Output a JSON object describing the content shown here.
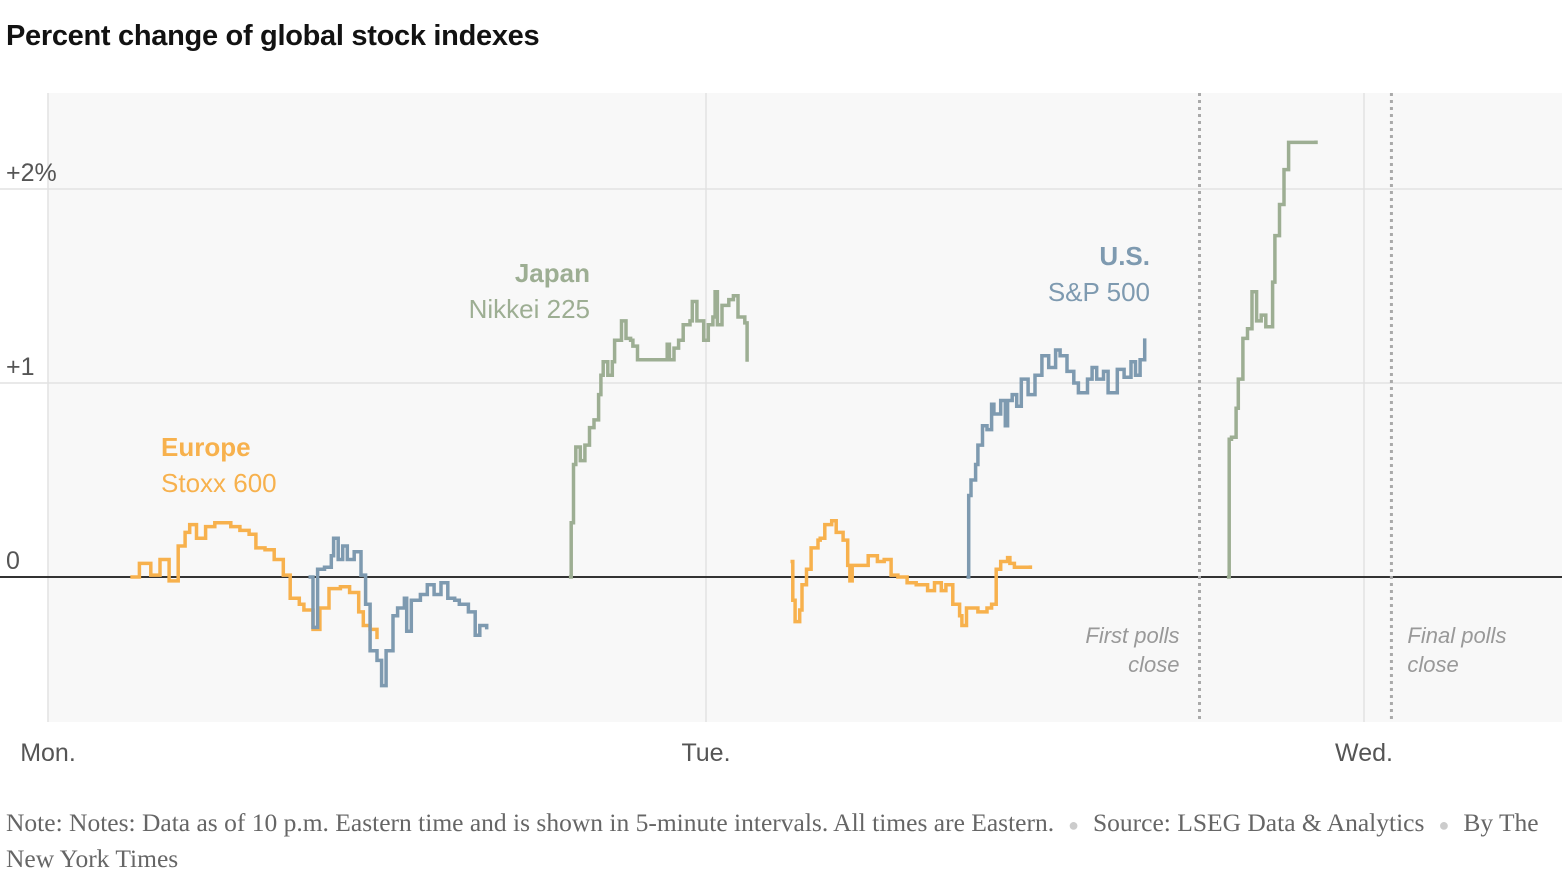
{
  "title": "Percent change of global stock indexes",
  "chart_data": {
    "type": "line",
    "title": "Percent change of global stock indexes",
    "step": true,
    "ylim": [
      -0.75,
      2.5
    ],
    "xlim": [
      "Mon 00:00",
      "Wed 07:00"
    ],
    "y_ticks": [
      {
        "value": 2,
        "label": "+2%"
      },
      {
        "value": 1,
        "label": "+1"
      },
      {
        "value": 0,
        "label": "0"
      }
    ],
    "x_ticks": [
      {
        "value": "Mon 00:00",
        "label": "Mon."
      },
      {
        "value": "Tue 00:00",
        "label": "Tue."
      },
      {
        "value": "Wed 00:00",
        "label": "Wed."
      }
    ],
    "grid": true,
    "series": [
      {
        "name": "Europe",
        "index": "Stoxx 600",
        "color": "#F7B14D",
        "segments": [
          [
            [
              "Mon 03:00",
              0
            ],
            [
              "Mon 03:20",
              0.07
            ],
            [
              "Mon 03:45",
              0.01
            ],
            [
              "Mon 04:05",
              0.09
            ],
            [
              "Mon 04:25",
              -0.02
            ],
            [
              "Mon 04:45",
              0.16
            ],
            [
              "Mon 05:00",
              0.23
            ],
            [
              "Mon 05:10",
              0.27
            ],
            [
              "Mon 05:25",
              0.2
            ],
            [
              "Mon 05:45",
              0.26
            ],
            [
              "Mon 06:05",
              0.28
            ],
            [
              "Mon 06:40",
              0.26
            ],
            [
              "Mon 07:00",
              0.24
            ],
            [
              "Mon 07:20",
              0.22
            ],
            [
              "Mon 07:35",
              0.15
            ],
            [
              "Mon 07:55",
              0.14
            ],
            [
              "Mon 08:15",
              0.09
            ],
            [
              "Mon 08:35",
              0.01
            ],
            [
              "Mon 08:50",
              -0.11
            ],
            [
              "Mon 09:10",
              -0.14
            ],
            [
              "Mon 09:20",
              -0.17
            ],
            [
              "Mon 09:40",
              -0.27
            ],
            [
              "Mon 09:55",
              -0.16
            ],
            [
              "Mon 10:15",
              -0.06
            ],
            [
              "Mon 10:40",
              -0.05
            ],
            [
              "Mon 11:00",
              -0.08
            ],
            [
              "Mon 11:20",
              -0.18
            ],
            [
              "Mon 11:30",
              -0.25
            ],
            [
              "Mon 11:45",
              -0.27
            ],
            [
              "Mon 12:00",
              -0.32
            ]
          ],
          [
            [
              "Tue 03:05",
              0.08
            ],
            [
              "Tue 03:10",
              -0.12
            ],
            [
              "Tue 03:15",
              -0.23
            ],
            [
              "Tue 03:25",
              -0.17
            ],
            [
              "Tue 03:30",
              -0.04
            ],
            [
              "Tue 03:40",
              0.04
            ],
            [
              "Tue 03:50",
              0.15
            ],
            [
              "Tue 04:05",
              0.19
            ],
            [
              "Tue 04:10",
              0.2
            ],
            [
              "Tue 04:20",
              0.27
            ],
            [
              "Tue 04:35",
              0.29
            ],
            [
              "Tue 04:45",
              0.23
            ],
            [
              "Tue 05:00",
              0.19
            ],
            [
              "Tue 05:10",
              0.06
            ],
            [
              "Tue 05:15",
              -0.02
            ],
            [
              "Tue 05:20",
              0.06
            ],
            [
              "Tue 05:40",
              0.06
            ],
            [
              "Tue 05:55",
              0.11
            ],
            [
              "Tue 06:15",
              0.08
            ],
            [
              "Tue 06:30",
              0.09
            ],
            [
              "Tue 06:45",
              0.01
            ],
            [
              "Tue 07:00",
              0
            ],
            [
              "Tue 07:20",
              -0.03
            ],
            [
              "Tue 07:40",
              -0.04
            ],
            [
              "Tue 08:05",
              -0.07
            ],
            [
              "Tue 08:20",
              -0.03
            ],
            [
              "Tue 08:35",
              -0.07
            ],
            [
              "Tue 08:45",
              -0.04
            ],
            [
              "Tue 09:00",
              -0.14
            ],
            [
              "Tue 09:15",
              -0.2
            ],
            [
              "Tue 09:20",
              -0.25
            ],
            [
              "Tue 09:30",
              -0.16
            ],
            [
              "Tue 09:55",
              -0.18
            ],
            [
              "Tue 10:15",
              -0.16
            ],
            [
              "Tue 10:25",
              -0.14
            ],
            [
              "Tue 10:35",
              0.04
            ],
            [
              "Tue 10:45",
              0.08
            ],
            [
              "Tue 11:00",
              0.1
            ],
            [
              "Tue 11:05",
              0.07
            ],
            [
              "Tue 11:15",
              0.05
            ],
            [
              "Tue 11:50",
              0.06
            ]
          ]
        ]
      },
      {
        "name": "Japan",
        "index": "Nikkei 225",
        "color": "#9DAE93",
        "segments": [
          [
            [
              "Mon 19:00",
              0
            ],
            [
              "Mon 19:05",
              0.28
            ],
            [
              "Mon 19:10",
              0.58
            ],
            [
              "Mon 19:15",
              0.67
            ],
            [
              "Mon 19:25",
              0.6
            ],
            [
              "Mon 19:35",
              0.68
            ],
            [
              "Mon 19:45",
              0.77
            ],
            [
              "Mon 19:55",
              0.81
            ],
            [
              "Mon 20:05",
              0.94
            ],
            [
              "Mon 20:10",
              1.04
            ],
            [
              "Mon 20:15",
              1.11
            ],
            [
              "Mon 20:25",
              1.04
            ],
            [
              "Mon 20:35",
              1.11
            ],
            [
              "Mon 20:40",
              1.22
            ],
            [
              "Mon 20:55",
              1.32
            ],
            [
              "Mon 21:05",
              1.23
            ],
            [
              "Mon 21:15",
              1.22
            ],
            [
              "Mon 21:20",
              1.19
            ],
            [
              "Mon 21:30",
              1.12
            ],
            [
              "Mon 22:30",
              1.12
            ],
            [
              "Mon 22:35",
              1.2
            ],
            [
              "Mon 22:40",
              1.12
            ],
            [
              "Mon 22:50",
              1.18
            ],
            [
              "Mon 23:00",
              1.22
            ],
            [
              "Mon 23:10",
              1.3
            ],
            [
              "Mon 23:25",
              1.32
            ],
            [
              "Mon 23:30",
              1.42
            ],
            [
              "Mon 23:40",
              1.32
            ],
            [
              "Mon 23:55",
              1.22
            ],
            [
              "Tue 00:05",
              1.3
            ],
            [
              "Tue 00:15",
              1.34
            ],
            [
              "Tue 00:20",
              1.47
            ],
            [
              "Tue 00:25",
              1.3
            ],
            [
              "Tue 00:35",
              1.4
            ],
            [
              "Tue 00:50",
              1.43
            ],
            [
              "Tue 01:00",
              1.45
            ],
            [
              "Tue 01:10",
              1.34
            ],
            [
              "Tue 01:25",
              1.31
            ],
            [
              "Tue 01:30",
              1.11
            ]
          ],
          [
            [
              "Tue 19:00",
              0
            ],
            [
              "Tue 19:05",
              0.71
            ],
            [
              "Tue 19:10",
              0.72
            ],
            [
              "Tue 19:20",
              0.87
            ],
            [
              "Tue 19:25",
              1.02
            ],
            [
              "Tue 19:35",
              1.23
            ],
            [
              "Tue 19:45",
              1.28
            ],
            [
              "Tue 19:55",
              1.47
            ],
            [
              "Tue 20:05",
              1.32
            ],
            [
              "Tue 20:15",
              1.35
            ],
            [
              "Tue 20:25",
              1.29
            ],
            [
              "Tue 20:40",
              1.52
            ],
            [
              "Tue 20:45",
              1.76
            ],
            [
              "Tue 20:55",
              1.92
            ],
            [
              "Tue 21:05",
              2.1
            ],
            [
              "Tue 21:15",
              2.24
            ],
            [
              "Tue 22:15",
              2.25
            ]
          ]
        ]
      },
      {
        "name": "U.S.",
        "index": "S&P 500",
        "color": "#7E9AB0",
        "segments": [
          [
            [
              "Mon 09:30",
              0
            ],
            [
              "Mon 09:40",
              -0.26
            ],
            [
              "Mon 09:50",
              0.04
            ],
            [
              "Mon 10:05",
              0.05
            ],
            [
              "Mon 10:20",
              0.11
            ],
            [
              "Mon 10:25",
              0.2
            ],
            [
              "Mon 10:35",
              0.09
            ],
            [
              "Mon 10:45",
              0.16
            ],
            [
              "Mon 10:55",
              0.09
            ],
            [
              "Mon 11:10",
              0.13
            ],
            [
              "Mon 11:25",
              0.01
            ],
            [
              "Mon 11:35",
              -0.14
            ],
            [
              "Mon 11:45",
              -0.38
            ],
            [
              "Mon 12:00",
              -0.43
            ],
            [
              "Mon 12:10",
              -0.56
            ],
            [
              "Mon 12:20",
              -0.38
            ],
            [
              "Mon 12:35",
              -0.2
            ],
            [
              "Mon 12:45",
              -0.16
            ],
            [
              "Mon 13:00",
              -0.11
            ],
            [
              "Mon 13:05",
              -0.28
            ],
            [
              "Mon 13:15",
              -0.12
            ],
            [
              "Mon 13:35",
              -0.09
            ],
            [
              "Mon 13:50",
              -0.04
            ],
            [
              "Mon 14:05",
              -0.09
            ],
            [
              "Mon 14:20",
              -0.03
            ],
            [
              "Mon 14:35",
              -0.11
            ],
            [
              "Mon 14:50",
              -0.12
            ],
            [
              "Mon 15:00",
              -0.14
            ],
            [
              "Mon 15:20",
              -0.18
            ],
            [
              "Mon 15:35",
              -0.3
            ],
            [
              "Mon 15:45",
              -0.25
            ],
            [
              "Mon 16:00",
              -0.27
            ]
          ],
          [
            [
              "Tue 09:30",
              0
            ],
            [
              "Tue 09:35",
              0.42
            ],
            [
              "Tue 09:40",
              0.5
            ],
            [
              "Tue 09:50",
              0.58
            ],
            [
              "Tue 09:55",
              0.68
            ],
            [
              "Tue 10:05",
              0.78
            ],
            [
              "Tue 10:15",
              0.76
            ],
            [
              "Tue 10:25",
              0.89
            ],
            [
              "Tue 10:30",
              0.84
            ],
            [
              "Tue 10:45",
              0.91
            ],
            [
              "Tue 10:55",
              0.78
            ],
            [
              "Tue 11:00",
              0.91
            ],
            [
              "Tue 11:10",
              0.94
            ],
            [
              "Tue 11:20",
              0.88
            ],
            [
              "Tue 11:30",
              1.02
            ],
            [
              "Tue 11:45",
              0.94
            ],
            [
              "Tue 12:00",
              1.04
            ],
            [
              "Tue 12:15",
              1.14
            ],
            [
              "Tue 12:30",
              1.08
            ],
            [
              "Tue 12:45",
              1.17
            ],
            [
              "Tue 12:55",
              1.14
            ],
            [
              "Tue 13:10",
              1.06
            ],
            [
              "Tue 13:25",
              1.0
            ],
            [
              "Tue 13:35",
              0.95
            ],
            [
              "Tue 13:55",
              1.02
            ],
            [
              "Tue 14:05",
              1.08
            ],
            [
              "Tue 14:15",
              1.02
            ],
            [
              "Tue 14:30",
              1.06
            ],
            [
              "Tue 14:40",
              0.95
            ],
            [
              "Tue 15:00",
              1.07
            ],
            [
              "Tue 15:15",
              1.03
            ],
            [
              "Tue 15:30",
              1.11
            ],
            [
              "Tue 15:40",
              1.04
            ],
            [
              "Tue 15:50",
              1.12
            ],
            [
              "Tue 16:00",
              1.23
            ]
          ]
        ]
      }
    ],
    "annotations": [
      {
        "x": "Tue 18:00",
        "lines": [
          "First polls",
          "close"
        ]
      },
      {
        "x": "Wed 01:00",
        "lines": [
          "Final polls",
          "close"
        ]
      }
    ]
  },
  "footer": {
    "note": "Note: Notes: Data as of 10 p.m. Eastern time and is shown in 5-minute intervals. All times are Eastern.",
    "source": "Source: LSEG Data & Analytics",
    "credit": "By The New York Times"
  }
}
